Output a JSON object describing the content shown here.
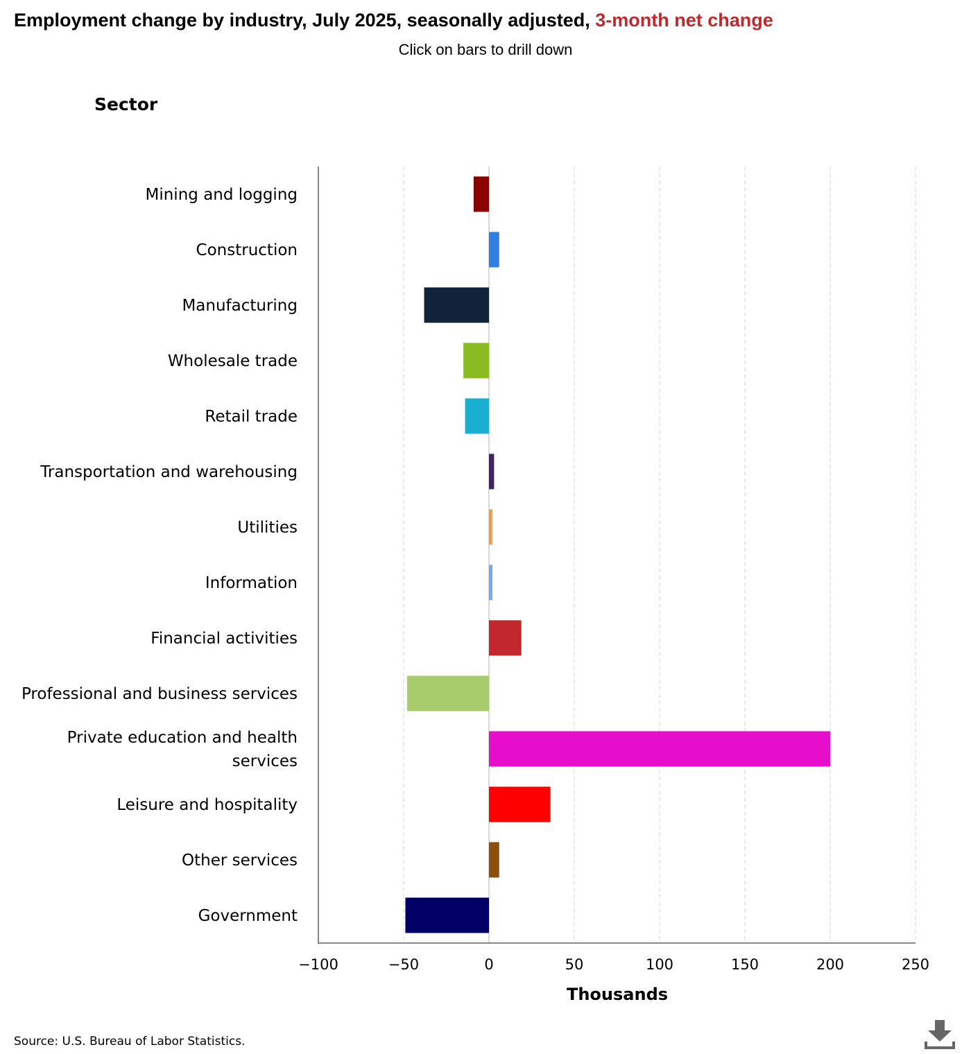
{
  "title": {
    "main": "Employment change by industry, July 2025, seasonally adjusted, ",
    "highlight": "3-month net change",
    "highlight_color": "#c0282d"
  },
  "subtitle": "Click on bars to drill down",
  "axis_heading": "Sector",
  "source": "Source: U.S. Bureau of Labor Statistics.",
  "download_icon": "download-icon",
  "chart_data": {
    "type": "bar",
    "orientation": "horizontal",
    "title": "Employment change by industry, July 2025, seasonally adjusted, 3-month net change",
    "xlabel": "Thousands",
    "ylabel": "Sector",
    "xlim": [
      -100,
      250
    ],
    "xticks": [
      -100,
      -50,
      0,
      50,
      100,
      150,
      200,
      250
    ],
    "xtick_labels": [
      "−100",
      "−50",
      "0",
      "50",
      "100",
      "150",
      "200",
      "250"
    ],
    "grid": true,
    "categories": [
      "Mining and logging",
      "Construction",
      "Manufacturing",
      "Wholesale trade",
      "Retail trade",
      "Transportation and warehousing",
      "Utilities",
      "Information",
      "Financial activities",
      "Professional and business services",
      "Private education and health services",
      "Leisure and hospitality",
      "Other services",
      "Government"
    ],
    "values": [
      -9,
      6,
      -38,
      -15,
      -14,
      3,
      2,
      2,
      19,
      -48,
      200,
      36,
      6,
      -49
    ],
    "colors": [
      "#8b0000",
      "#2f80e0",
      "#10233a",
      "#8bbb22",
      "#1aafd0",
      "#3d2466",
      "#f4984c",
      "#79a8e8",
      "#c1272d",
      "#a8cb6b",
      "#e60ecb",
      "#ff0000",
      "#8b4e0b",
      "#000066"
    ]
  }
}
